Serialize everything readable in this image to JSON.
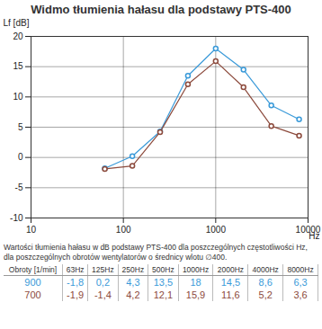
{
  "chart_data": {
    "type": "line",
    "title": "Widmo tłumienia hałasu dla podstawy  PTS-400",
    "x_label": "Hz",
    "y_label": "Lf [dB]",
    "x": [
      63,
      125,
      250,
      500,
      1000,
      2000,
      4000,
      8000
    ],
    "series": [
      {
        "name": "900",
        "color": "#3a9ad9",
        "marker": "circle",
        "values": [
          -1.8,
          0.2,
          4.3,
          13.5,
          18,
          14.5,
          8.6,
          6.3
        ]
      },
      {
        "name": "700",
        "color": "#8c4a3c",
        "marker": "circle",
        "values": [
          -1.9,
          -1.4,
          4.2,
          12.1,
          15.9,
          11.6,
          5.2,
          3.6
        ]
      }
    ],
    "xlim": [
      10,
      10000
    ],
    "ylim": [
      -10,
      20
    ],
    "xticks": [
      10,
      100,
      1000,
      10000
    ],
    "yticks": [
      -10,
      -5,
      0,
      5,
      10,
      15,
      20
    ],
    "log": "x",
    "grid": true,
    "table": {
      "caption": "Wartości tłumienia hałasu w dB podstawy PTS-400 dla poszczególnych częstotliwości Hz, dla poszczególnych obrotów wentylatorów o średnicy wlotu ∅400.",
      "header": [
        "Obroty [1/min]",
        "63Hz",
        "125Hz",
        "250Hz",
        "500Hz",
        "1000Hz",
        "2000Hz",
        "4000Hz",
        "8000Hz"
      ],
      "rows": [
        [
          "900",
          "-1,8",
          "0,2",
          "4,3",
          "13,5",
          "18",
          "14,5",
          "8,6",
          "6,3"
        ],
        [
          "700",
          "-1,9",
          "-1,4",
          "4,2",
          "12,1",
          "15,9",
          "11,6",
          "5,2",
          "3,6"
        ]
      ]
    }
  }
}
